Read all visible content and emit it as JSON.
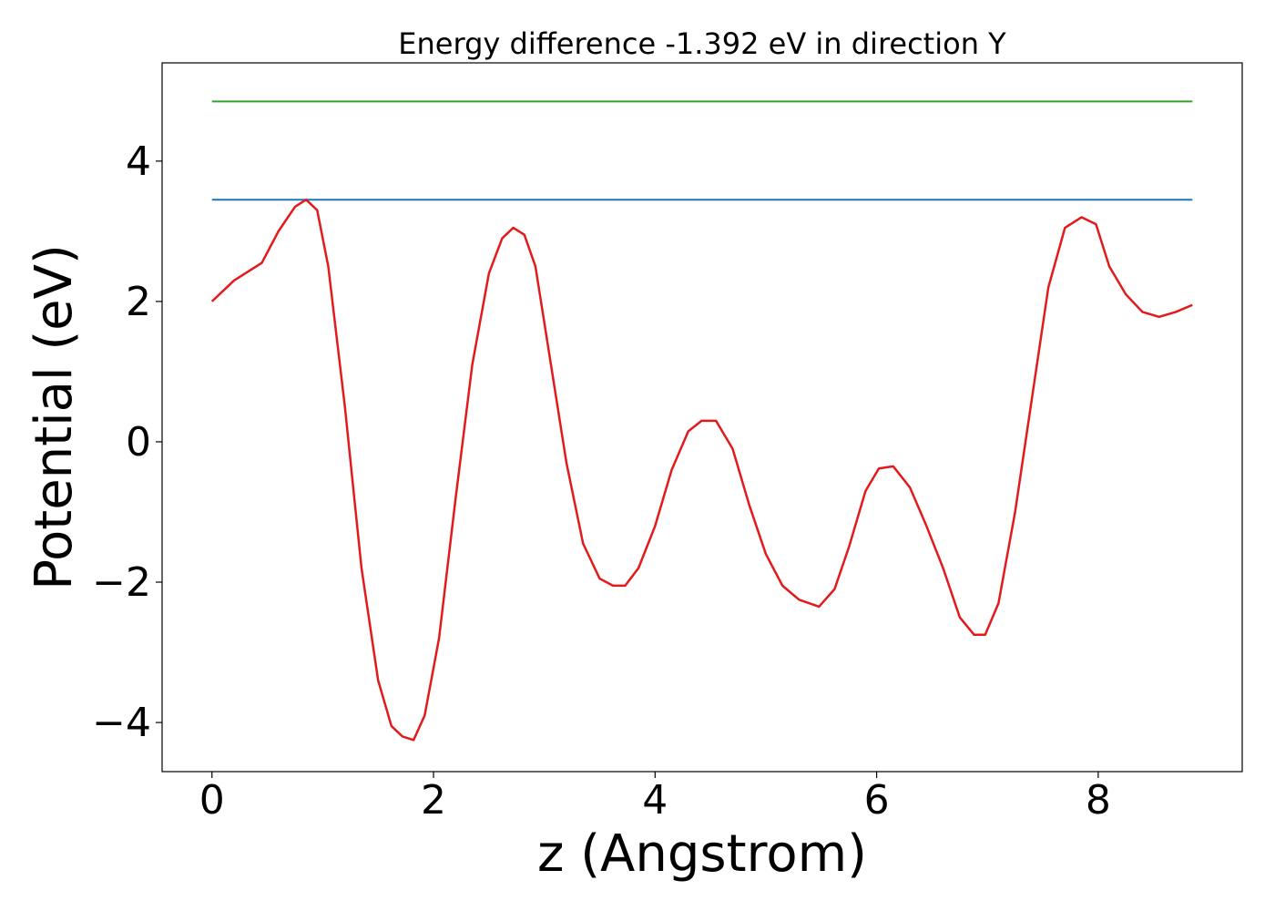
{
  "chart_data": {
    "type": "line",
    "title": "Energy difference -1.392 eV in direction Y",
    "xlabel": "z (Angstrom)",
    "ylabel": "Potential (eV)",
    "xlim": [
      -0.45,
      9.3
    ],
    "ylim": [
      -4.7,
      5.4
    ],
    "x_ticks": [
      0,
      2,
      4,
      6,
      8
    ],
    "x_tick_labels": [
      "0",
      "2",
      "4",
      "6",
      "8"
    ],
    "y_ticks": [
      -4,
      -2,
      0,
      2,
      4
    ],
    "y_tick_labels": [
      "−4",
      "−2",
      "0",
      "2",
      "4"
    ],
    "grid": false,
    "series": [
      {
        "color": "#e31a1c",
        "x": [
          0.0,
          0.2,
          0.45,
          0.6,
          0.75,
          0.85,
          0.95,
          1.05,
          1.2,
          1.35,
          1.5,
          1.62,
          1.72,
          1.82,
          1.92,
          2.05,
          2.2,
          2.35,
          2.5,
          2.62,
          2.72,
          2.82,
          2.92,
          3.05,
          3.2,
          3.35,
          3.5,
          3.62,
          3.73,
          3.85,
          4.0,
          4.15,
          4.3,
          4.42,
          4.55,
          4.7,
          4.85,
          5.0,
          5.15,
          5.3,
          5.48,
          5.62,
          5.75,
          5.9,
          6.02,
          6.15,
          6.3,
          6.45,
          6.6,
          6.75,
          6.88,
          6.98,
          7.1,
          7.25,
          7.4,
          7.55,
          7.7,
          7.85,
          7.98,
          8.1,
          8.25,
          8.4,
          8.55,
          8.7,
          8.85
        ],
        "y": [
          2.0,
          2.3,
          2.55,
          3.0,
          3.35,
          3.45,
          3.3,
          2.5,
          0.5,
          -1.8,
          -3.4,
          -4.05,
          -4.2,
          -4.25,
          -3.9,
          -2.8,
          -0.8,
          1.1,
          2.4,
          2.9,
          3.05,
          2.95,
          2.5,
          1.2,
          -0.3,
          -1.45,
          -1.95,
          -2.05,
          -2.05,
          -1.8,
          -1.2,
          -0.4,
          0.15,
          0.3,
          0.3,
          -0.1,
          -0.9,
          -1.6,
          -2.05,
          -2.25,
          -2.35,
          -2.1,
          -1.5,
          -0.7,
          -0.38,
          -0.35,
          -0.65,
          -1.2,
          -1.8,
          -2.5,
          -2.75,
          -2.75,
          -2.3,
          -1.0,
          0.6,
          2.2,
          3.05,
          3.2,
          3.1,
          2.5,
          2.1,
          1.85,
          1.78,
          1.85,
          1.95
        ]
      },
      {
        "color": "#1f77b4",
        "x": [
          0.0,
          8.85
        ],
        "y": [
          3.45,
          3.45
        ]
      },
      {
        "color": "#33a02c",
        "x": [
          0.0,
          8.85
        ],
        "y": [
          4.85,
          4.85
        ]
      }
    ]
  }
}
